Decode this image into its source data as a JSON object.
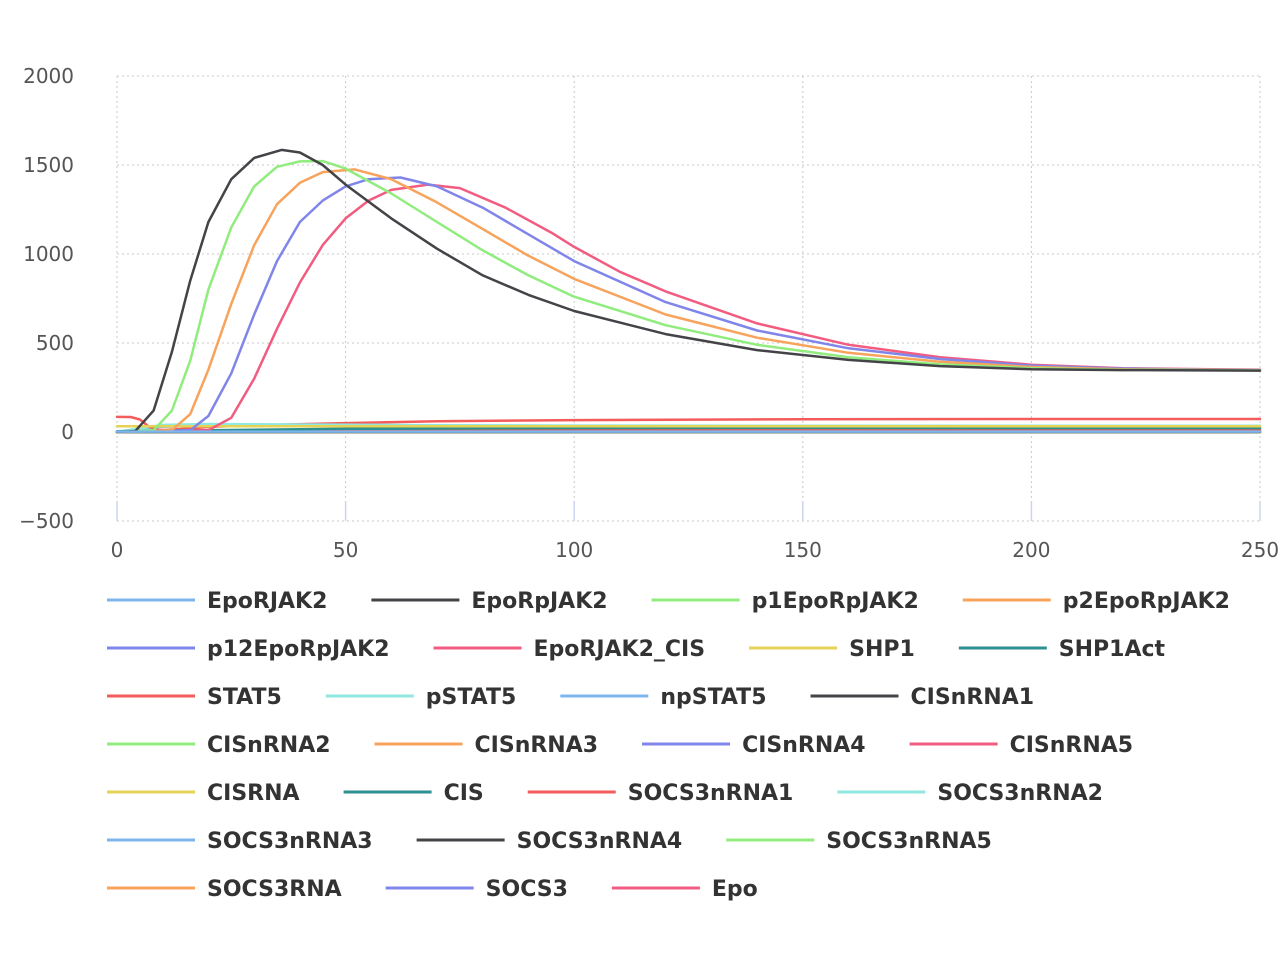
{
  "chart_data": {
    "type": "line",
    "title": "",
    "xlabel": "",
    "ylabel": "",
    "xlim": [
      0,
      250
    ],
    "ylim": [
      -500,
      2000
    ],
    "x_ticks": [
      0,
      50,
      100,
      150,
      200,
      250
    ],
    "y_ticks": [
      -500,
      0,
      500,
      1000,
      1500,
      2000
    ],
    "y_tick_labels": [
      "−500",
      "0",
      "500",
      "1000",
      "1500",
      "2000"
    ],
    "grid": true,
    "legend_position": "bottom",
    "series": [
      {
        "name": "EpoRJAK2",
        "color": "#7cb5ec",
        "points": [
          [
            0,
            2
          ],
          [
            250,
            2
          ]
        ]
      },
      {
        "name": "EpoRpJAK2",
        "color": "#434348",
        "points": [
          [
            0,
            0
          ],
          [
            4,
            5
          ],
          [
            8,
            120
          ],
          [
            12,
            450
          ],
          [
            16,
            850
          ],
          [
            20,
            1180
          ],
          [
            25,
            1420
          ],
          [
            30,
            1540
          ],
          [
            36,
            1585
          ],
          [
            40,
            1570
          ],
          [
            45,
            1500
          ],
          [
            50,
            1390
          ],
          [
            60,
            1200
          ],
          [
            70,
            1030
          ],
          [
            80,
            880
          ],
          [
            90,
            770
          ],
          [
            100,
            680
          ],
          [
            120,
            550
          ],
          [
            140,
            460
          ],
          [
            160,
            405
          ],
          [
            180,
            370
          ],
          [
            200,
            352
          ],
          [
            220,
            348
          ],
          [
            250,
            345
          ]
        ]
      },
      {
        "name": "p1EpoRpJAK2",
        "color": "#90ed7d",
        "points": [
          [
            0,
            0
          ],
          [
            8,
            10
          ],
          [
            12,
            120
          ],
          [
            16,
            400
          ],
          [
            20,
            800
          ],
          [
            25,
            1150
          ],
          [
            30,
            1380
          ],
          [
            35,
            1490
          ],
          [
            40,
            1520
          ],
          [
            45,
            1522
          ],
          [
            50,
            1480
          ],
          [
            60,
            1340
          ],
          [
            70,
            1180
          ],
          [
            80,
            1020
          ],
          [
            90,
            880
          ],
          [
            100,
            760
          ],
          [
            120,
            600
          ],
          [
            140,
            490
          ],
          [
            160,
            420
          ],
          [
            180,
            380
          ],
          [
            200,
            358
          ],
          [
            220,
            350
          ],
          [
            250,
            346
          ]
        ]
      },
      {
        "name": "p2EpoRpJAK2",
        "color": "#f7a35c",
        "points": [
          [
            0,
            0
          ],
          [
            12,
            10
          ],
          [
            16,
            100
          ],
          [
            20,
            350
          ],
          [
            25,
            720
          ],
          [
            30,
            1050
          ],
          [
            35,
            1280
          ],
          [
            40,
            1400
          ],
          [
            45,
            1460
          ],
          [
            52,
            1475
          ],
          [
            60,
            1420
          ],
          [
            70,
            1290
          ],
          [
            80,
            1140
          ],
          [
            90,
            990
          ],
          [
            100,
            860
          ],
          [
            120,
            660
          ],
          [
            140,
            530
          ],
          [
            160,
            445
          ],
          [
            180,
            395
          ],
          [
            200,
            365
          ],
          [
            220,
            352
          ],
          [
            250,
            347
          ]
        ]
      },
      {
        "name": "p12EpoRpJAK2",
        "color": "#8085e9",
        "points": [
          [
            0,
            0
          ],
          [
            16,
            10
          ],
          [
            20,
            90
          ],
          [
            25,
            330
          ],
          [
            30,
            660
          ],
          [
            35,
            960
          ],
          [
            40,
            1180
          ],
          [
            45,
            1300
          ],
          [
            50,
            1380
          ],
          [
            55,
            1420
          ],
          [
            62,
            1430
          ],
          [
            70,
            1380
          ],
          [
            80,
            1260
          ],
          [
            90,
            1110
          ],
          [
            100,
            960
          ],
          [
            120,
            730
          ],
          [
            140,
            570
          ],
          [
            160,
            470
          ],
          [
            180,
            410
          ],
          [
            200,
            373
          ],
          [
            220,
            356
          ],
          [
            250,
            348
          ]
        ]
      },
      {
        "name": "EpoRJAK2_CIS",
        "color": "#f15c80",
        "points": [
          [
            0,
            0
          ],
          [
            20,
            10
          ],
          [
            25,
            80
          ],
          [
            30,
            300
          ],
          [
            35,
            580
          ],
          [
            40,
            840
          ],
          [
            45,
            1050
          ],
          [
            50,
            1200
          ],
          [
            55,
            1300
          ],
          [
            60,
            1360
          ],
          [
            68,
            1390
          ],
          [
            75,
            1370
          ],
          [
            85,
            1260
          ],
          [
            95,
            1120
          ],
          [
            100,
            1040
          ],
          [
            110,
            900
          ],
          [
            120,
            790
          ],
          [
            140,
            610
          ],
          [
            160,
            490
          ],
          [
            180,
            420
          ],
          [
            200,
            378
          ],
          [
            220,
            358
          ],
          [
            250,
            350
          ]
        ]
      },
      {
        "name": "SHP1",
        "color": "#e4d354",
        "points": [
          [
            0,
            32
          ],
          [
            250,
            32
          ]
        ]
      },
      {
        "name": "SHP1Act",
        "color": "#2b908f",
        "points": [
          [
            0,
            4
          ],
          [
            20,
            10
          ],
          [
            50,
            18
          ],
          [
            100,
            22
          ],
          [
            150,
            23
          ],
          [
            200,
            22
          ],
          [
            250,
            22
          ]
        ]
      },
      {
        "name": "STAT5",
        "color": "#f45b5b",
        "points": [
          [
            0,
            85
          ],
          [
            3,
            84
          ],
          [
            5,
            70
          ],
          [
            7,
            30
          ],
          [
            9,
            12
          ],
          [
            12,
            10
          ],
          [
            250,
            10
          ]
        ]
      },
      {
        "name": "pSTAT5",
        "color": "#91e8e1",
        "points": [
          [
            0,
            1
          ],
          [
            5,
            20
          ],
          [
            10,
            40
          ],
          [
            20,
            45
          ],
          [
            40,
            42
          ],
          [
            70,
            38
          ],
          [
            100,
            36
          ],
          [
            150,
            35
          ],
          [
            250,
            35
          ]
        ]
      },
      {
        "name": "npSTAT5",
        "color": "#7cb5ec",
        "points": [
          [
            0,
            1
          ],
          [
            5,
            15
          ],
          [
            10,
            30
          ],
          [
            20,
            35
          ],
          [
            50,
            32
          ],
          [
            100,
            30
          ],
          [
            250,
            30
          ]
        ]
      },
      {
        "name": "CISnRNA1",
        "color": "#434348",
        "points": [
          [
            0,
            0
          ],
          [
            250,
            0
          ]
        ]
      },
      {
        "name": "CISnRNA2",
        "color": "#90ed7d",
        "points": [
          [
            0,
            0
          ],
          [
            250,
            0
          ]
        ]
      },
      {
        "name": "CISnRNA3",
        "color": "#f7a35c",
        "points": [
          [
            0,
            0
          ],
          [
            250,
            0
          ]
        ]
      },
      {
        "name": "CISnRNA4",
        "color": "#8085e9",
        "points": [
          [
            0,
            0
          ],
          [
            250,
            0
          ]
        ]
      },
      {
        "name": "CISnRNA5",
        "color": "#f15c80",
        "points": [
          [
            0,
            0
          ],
          [
            250,
            1
          ]
        ]
      },
      {
        "name": "CISRNA",
        "color": "#e4d354",
        "points": [
          [
            0,
            0
          ],
          [
            20,
            2
          ],
          [
            60,
            8
          ],
          [
            120,
            12
          ],
          [
            250,
            14
          ]
        ]
      },
      {
        "name": "CIS",
        "color": "#2b908f",
        "points": [
          [
            0,
            0
          ],
          [
            20,
            5
          ],
          [
            60,
            14
          ],
          [
            100,
            18
          ],
          [
            150,
            20
          ],
          [
            250,
            20
          ]
        ]
      },
      {
        "name": "SOCS3nRNA1",
        "color": "#f45b5b",
        "points": [
          [
            0,
            0
          ],
          [
            10,
            10
          ],
          [
            20,
            28
          ],
          [
            30,
            38
          ],
          [
            50,
            50
          ],
          [
            70,
            60
          ],
          [
            100,
            67
          ],
          [
            150,
            72
          ],
          [
            200,
            73
          ],
          [
            250,
            73
          ]
        ]
      },
      {
        "name": "SOCS3nRNA2",
        "color": "#91e8e1",
        "points": [
          [
            0,
            0
          ],
          [
            250,
            1
          ]
        ]
      },
      {
        "name": "SOCS3nRNA3",
        "color": "#7cb5ec",
        "points": [
          [
            0,
            0
          ],
          [
            250,
            1
          ]
        ]
      },
      {
        "name": "SOCS3nRNA4",
        "color": "#434348",
        "points": [
          [
            0,
            0
          ],
          [
            250,
            1
          ]
        ]
      },
      {
        "name": "SOCS3nRNA5",
        "color": "#90ed7d",
        "points": [
          [
            0,
            0
          ],
          [
            250,
            1
          ]
        ]
      },
      {
        "name": "SOCS3RNA",
        "color": "#f7a35c",
        "points": [
          [
            0,
            0
          ],
          [
            250,
            2
          ]
        ]
      },
      {
        "name": "SOCS3",
        "color": "#8085e9",
        "points": [
          [
            0,
            0
          ],
          [
            250,
            3
          ]
        ]
      },
      {
        "name": "Epo",
        "color": "#f15c80",
        "points": [
          [
            0,
            0
          ],
          [
            250,
            0
          ]
        ]
      }
    ]
  }
}
